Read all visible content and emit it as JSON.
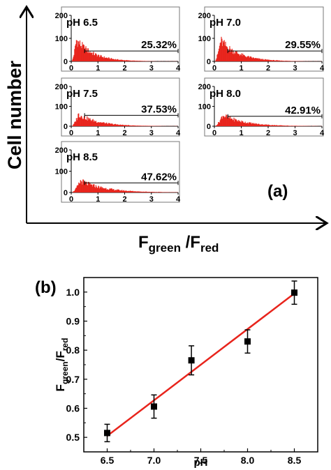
{
  "panel_a_label": "(a)",
  "panel_b_label": "(b)",
  "panel_a_ylabel": "Cell number",
  "panel_a_xlabel": {
    "main": "F",
    "sub1": "green",
    "sep": " /F",
    "sub2": "red"
  },
  "colors": {
    "histogram": "#e8241c",
    "fit_line": "#e8241c",
    "axis": "#000000",
    "points": "#000000"
  },
  "chart_data": [
    {
      "type": "bar",
      "panel": "(a)",
      "title": "",
      "xlabel": "F green /F red",
      "ylabel": "Cell number",
      "xlim": [
        0,
        4
      ],
      "ylim": [
        0,
        200
      ],
      "xticks": [
        "0",
        "1",
        "2",
        "3",
        "4"
      ],
      "yticks": [
        "0",
        "100",
        "200"
      ],
      "subplots": [
        {
          "label": "pH 6.5",
          "percent": "25.32%",
          "peak": 120,
          "gate_y": 45
        },
        {
          "label": "pH 7.0",
          "percent": "29.55%",
          "peak": 115,
          "gate_y": 45
        },
        {
          "label": "pH 7.5",
          "percent": "37.53%",
          "peak": 78,
          "gate_y": 55
        },
        {
          "label": "pH 8.0",
          "percent": "42.91%",
          "peak": 72,
          "gate_y": 50
        },
        {
          "label": "pH 8.5",
          "percent": "47.62%",
          "peak": 70,
          "gate_y": 45
        }
      ]
    },
    {
      "type": "scatter",
      "panel": "(b)",
      "xlabel": "pH",
      "ylabel": {
        "main": "F",
        "sub1": "green",
        "sep": "/F",
        "sub2": "red"
      },
      "xlim": [
        6.25,
        8.75
      ],
      "ylim": [
        0.45,
        1.05
      ],
      "xticks": [
        "6.5",
        "7.0",
        "7.5",
        "8.0",
        "8.5"
      ],
      "yticks": [
        "0.5",
        "0.6",
        "0.7",
        "0.8",
        "0.9",
        "1.0"
      ],
      "points": [
        {
          "x": 6.5,
          "y": 0.515,
          "err": 0.03
        },
        {
          "x": 7.0,
          "y": 0.606,
          "err": 0.04
        },
        {
          "x": 7.4,
          "y": 0.765,
          "err": 0.05
        },
        {
          "x": 8.0,
          "y": 0.83,
          "err": 0.04
        },
        {
          "x": 8.5,
          "y": 0.998,
          "err": 0.04
        }
      ],
      "fit": {
        "x": [
          6.5,
          8.5
        ],
        "y": [
          0.505,
          0.995
        ]
      }
    }
  ]
}
